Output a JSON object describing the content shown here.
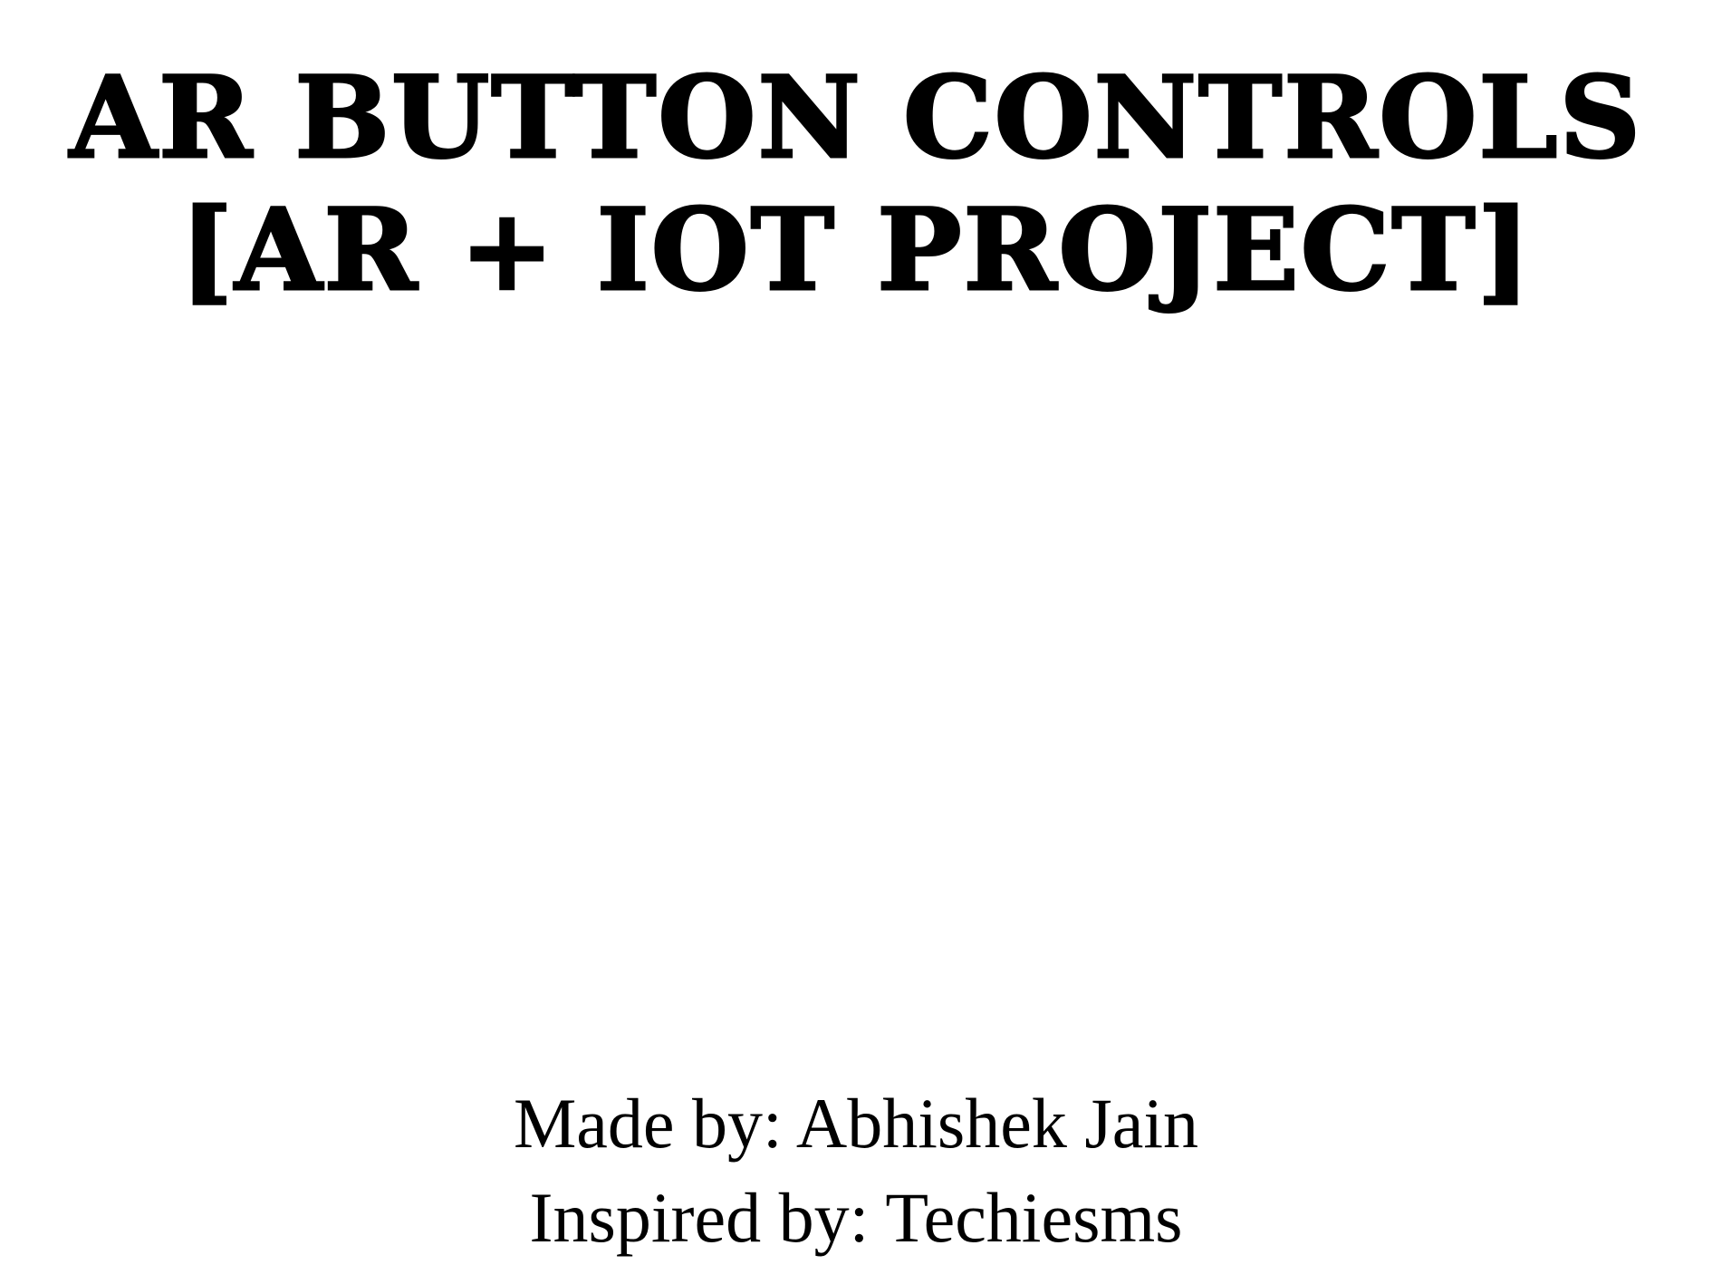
{
  "title": {
    "line1": "AR BUTTON CONTROLS",
    "line2": "[AR + IOT PROJECT]"
  },
  "credits": {
    "made_by": "Made by: Abhishek Jain",
    "inspired_by": "Inspired by: Techiesms"
  }
}
